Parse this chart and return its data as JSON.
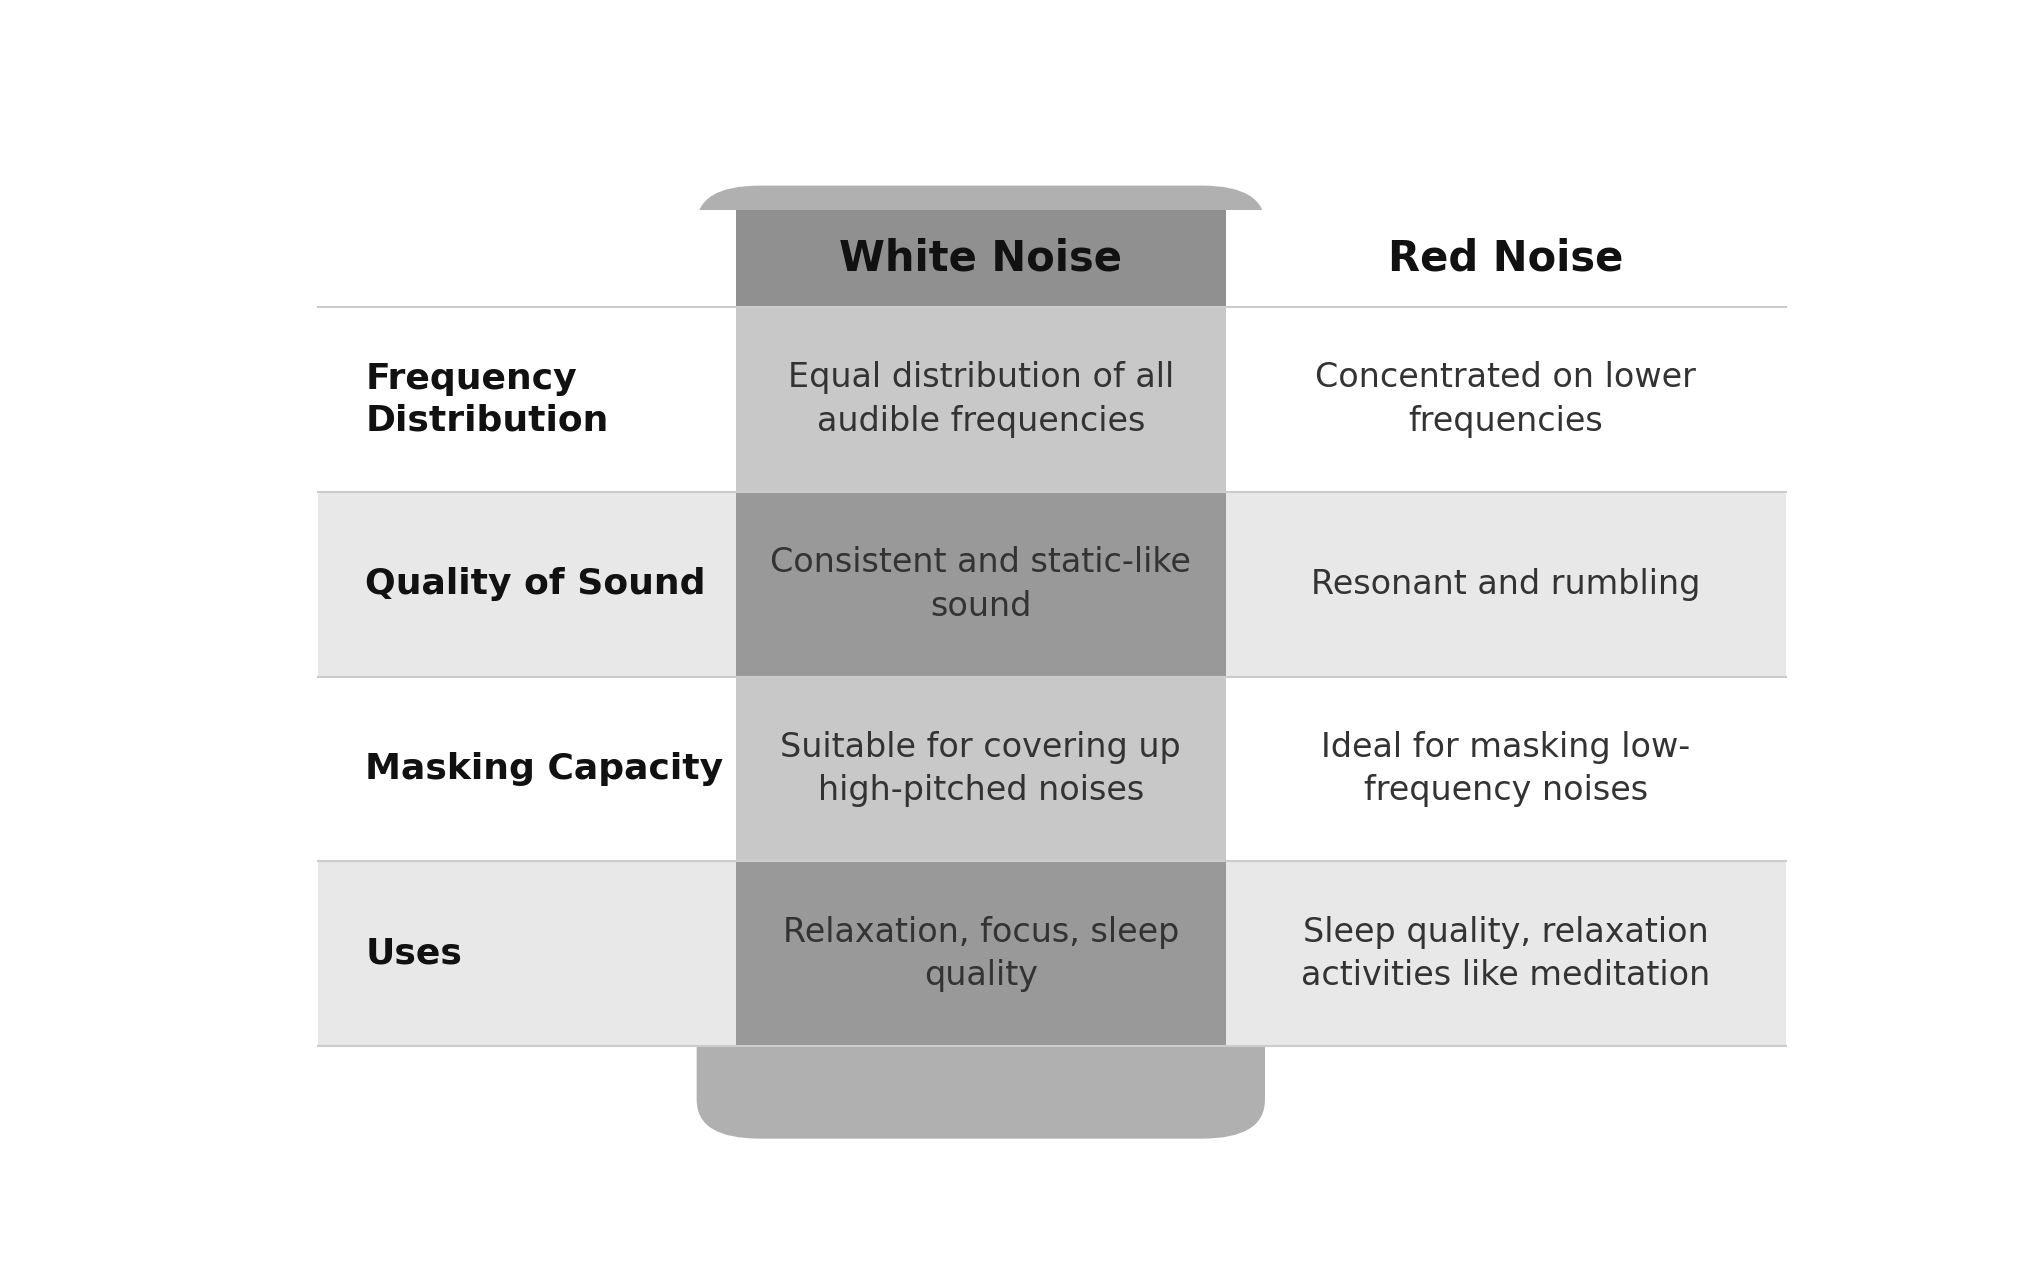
{
  "title_white": "White Noise",
  "title_red": "Red Noise",
  "rows": [
    {
      "label": "Frequency\nDistribution",
      "white": "Equal distribution of all\naudible frequencies",
      "red": "Concentrated on lower\nfrequencies"
    },
    {
      "label": "Quality of Sound",
      "white": "Consistent and static-like\nsound",
      "red": "Resonant and rumbling"
    },
    {
      "label": "Masking Capacity",
      "white": "Suitable for covering up\nhigh-pitched noises",
      "red": "Ideal for masking low-\nfrequency noises"
    },
    {
      "label": "Uses",
      "white": "Relaxation, focus, sleep\nquality",
      "red": "Sleep quality, relaxation\nactivities like meditation"
    }
  ],
  "bg_color": "#ffffff",
  "row_bg_colors": [
    "#ffffff",
    "#e8e8e8",
    "#ffffff",
    "#e8e8e8"
  ],
  "white_cell_colors": [
    "#c8c8c8",
    "#999999",
    "#c8c8c8",
    "#999999"
  ],
  "header_white_bg": "#909090",
  "wn_col_bg": "#b0b0b0",
  "label_fontsize": 26,
  "cell_fontsize": 24,
  "header_fontsize": 30
}
